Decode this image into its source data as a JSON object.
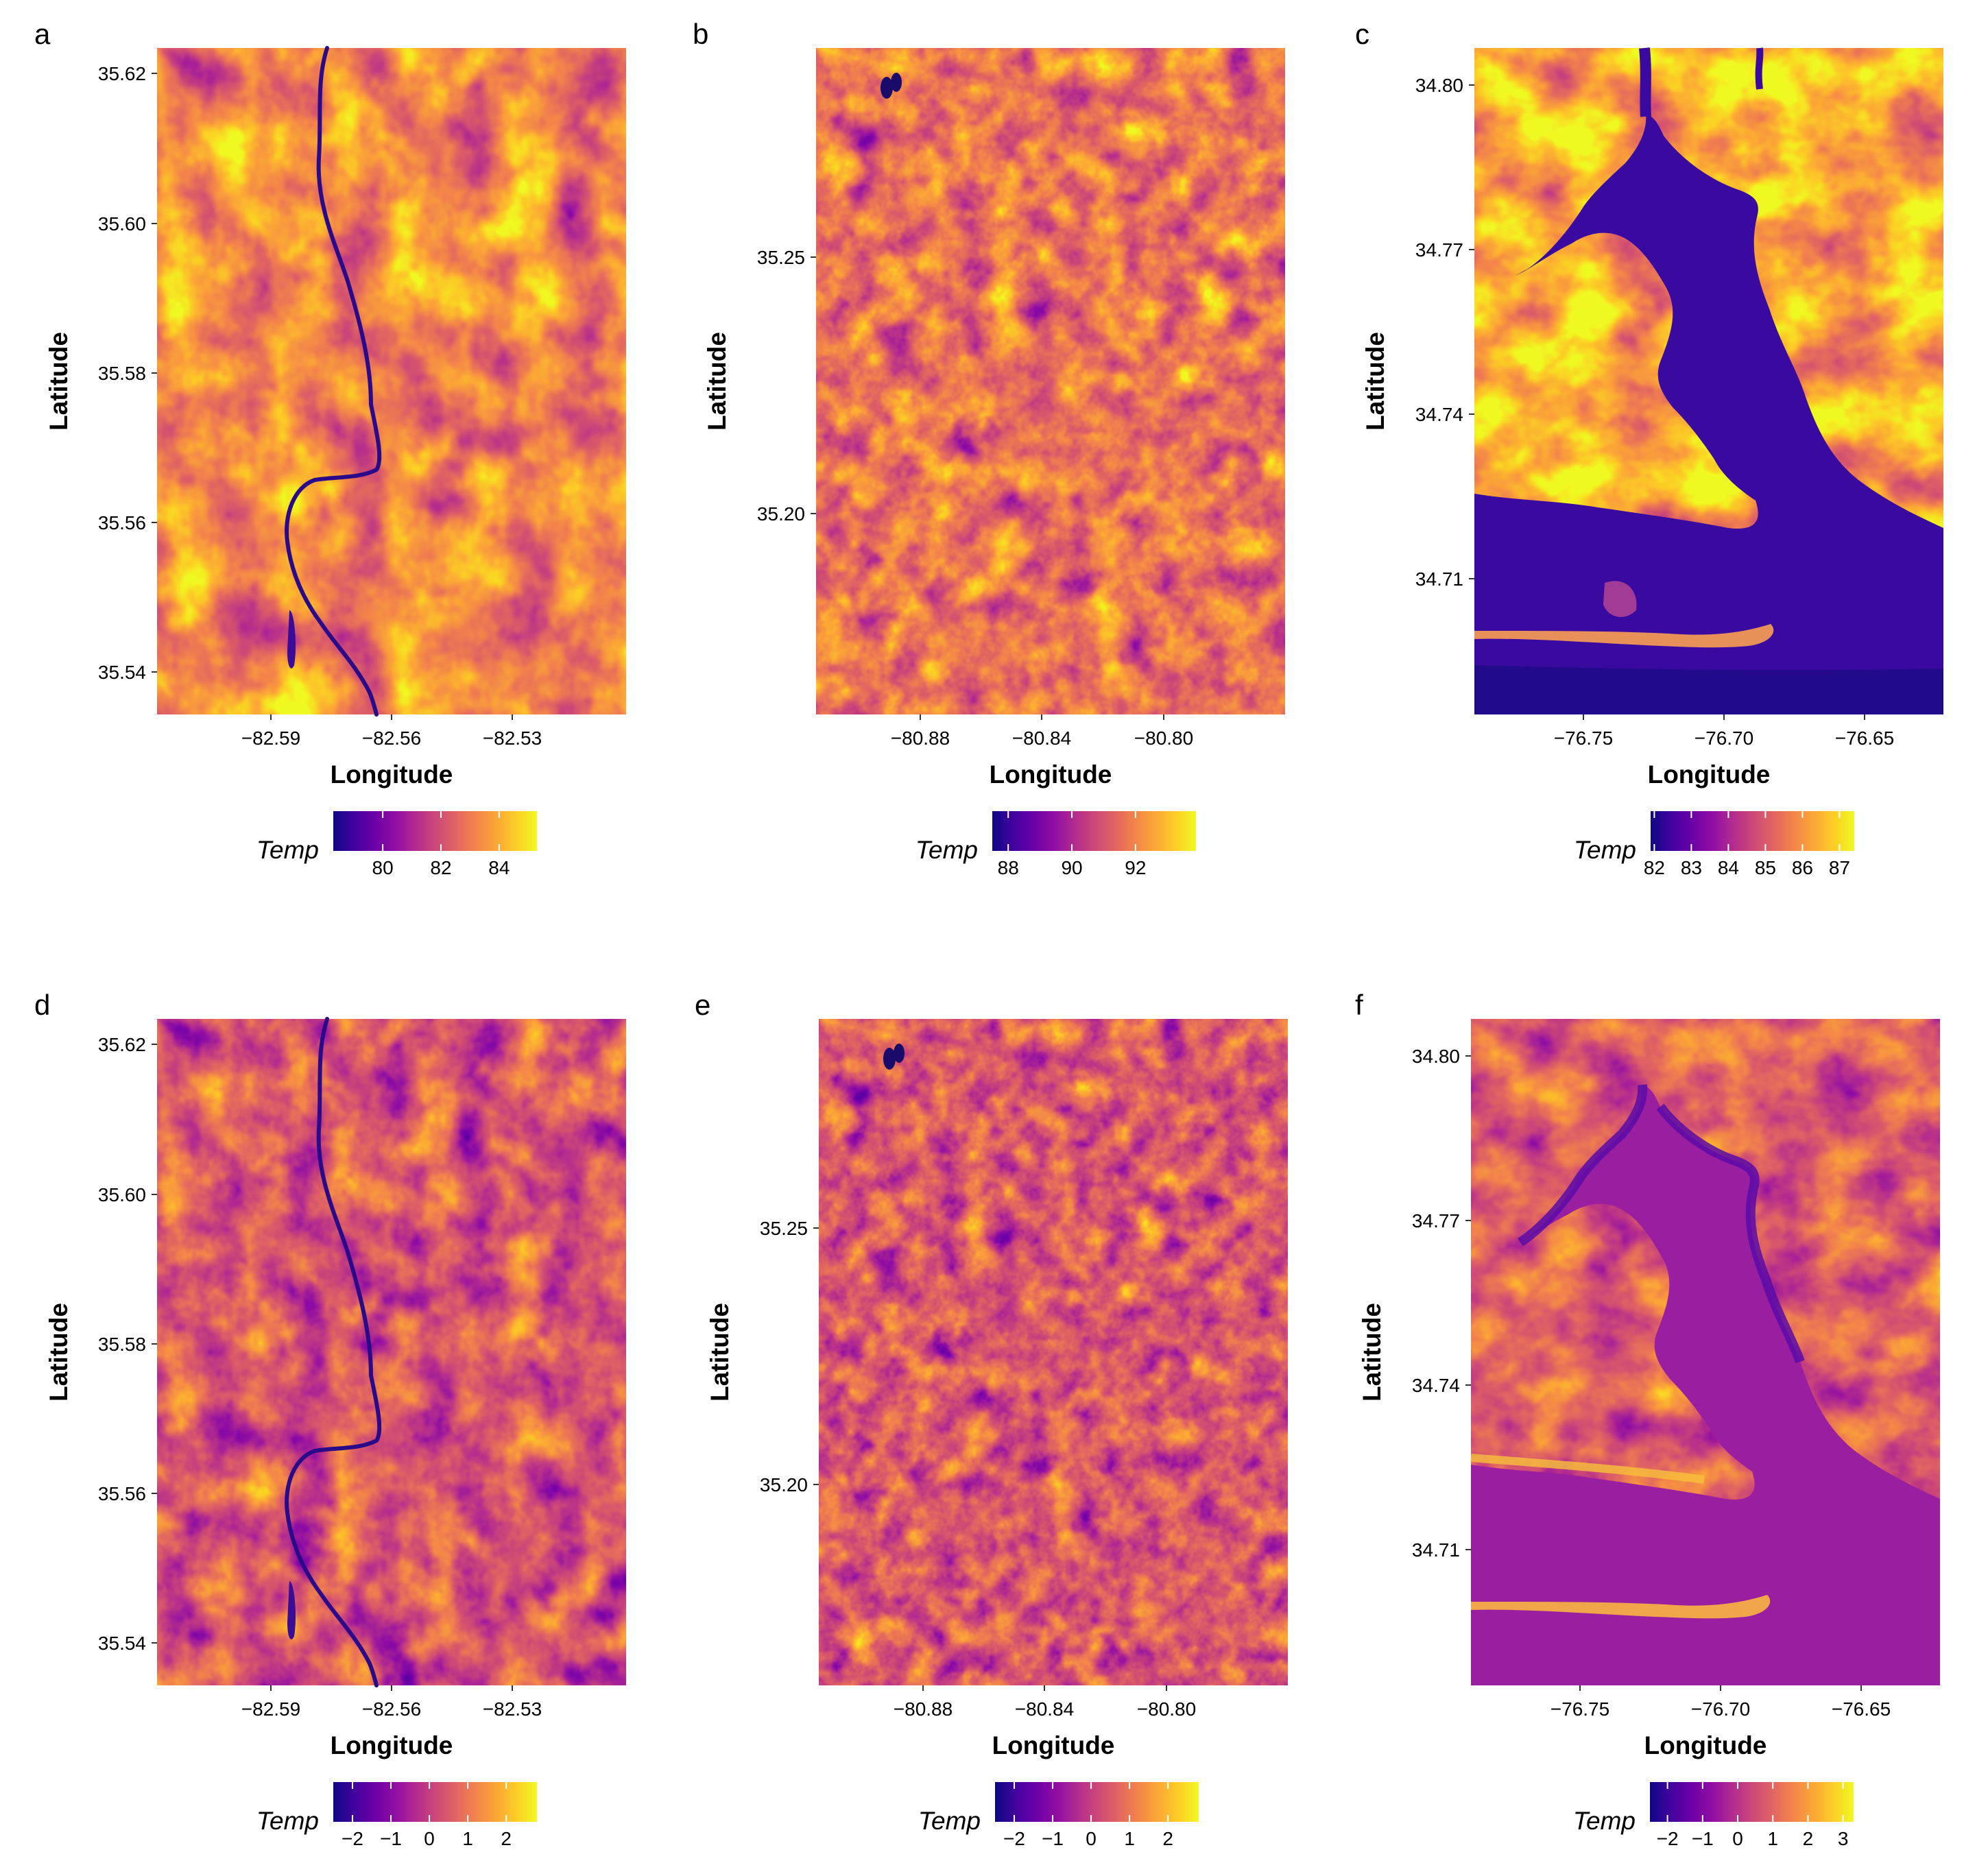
{
  "colors": {
    "palette": "plasma",
    "stops": [
      "#0d0887",
      "#41049d",
      "#6a00a8",
      "#8f0da4",
      "#b12a90",
      "#cc4778",
      "#e16462",
      "#f2844b",
      "#fca636",
      "#fcce25",
      "#f0f921"
    ]
  },
  "chart_data": [
    {
      "type": "heatmap",
      "panel": "a",
      "xlabel": "Longitude",
      "ylabel": "Latitude",
      "x_ticks": [
        "−82.59",
        "−82.56",
        "−82.53"
      ],
      "x_tick_values": [
        -82.59,
        -82.56,
        -82.53
      ],
      "y_ticks": [
        "35.54",
        "35.56",
        "35.58",
        "35.60",
        "35.62"
      ],
      "y_tick_values": [
        35.54,
        35.56,
        35.58,
        35.6,
        35.62
      ],
      "xlim": [
        -82.617,
        -82.5067
      ],
      "ylim": [
        35.534,
        35.623
      ],
      "legend": {
        "title": "Temp",
        "ticks": [
          "80",
          "82",
          "84"
        ],
        "tick_values": [
          80,
          82,
          84
        ],
        "range": [
          78.3,
          85.3
        ]
      },
      "layers": {
        "water": "river",
        "cool_patches": [
          [
            0.75,
            0.05,
            0.12,
            0.4,
            1.0
          ],
          [
            0.58,
            0.1,
            0.08,
            0.35,
            0.9
          ]
        ]
      }
    },
    {
      "type": "heatmap",
      "panel": "b",
      "xlabel": "Longitude",
      "ylabel": "Latitude",
      "x_ticks": [
        "−80.88",
        "−80.84",
        "−80.80"
      ],
      "x_tick_values": [
        -80.88,
        -80.84,
        -80.8
      ],
      "y_ticks": [
        "35.20",
        "35.25"
      ],
      "y_tick_values": [
        35.2,
        35.25
      ],
      "xlim": [
        -80.9065,
        -80.7835
      ],
      "ylim": [
        35.1635,
        35.2935
      ],
      "legend": {
        "title": "Temp",
        "ticks": [
          "88",
          "90",
          "92"
        ],
        "tick_values": [
          88,
          90,
          92
        ],
        "range": [
          87.5,
          93.9
        ]
      },
      "layers": {
        "water": "none",
        "urban_core": [
          0.43,
          0.55
        ]
      }
    },
    {
      "type": "heatmap",
      "panel": "c",
      "xlabel": "Longitude",
      "ylabel": "Latitude",
      "x_ticks": [
        "−76.75",
        "−76.70",
        "−76.65"
      ],
      "x_tick_values": [
        -76.75,
        -76.7,
        -76.65
      ],
      "y_ticks": [
        "34.71",
        "34.74",
        "34.77",
        "34.80"
      ],
      "y_tick_values": [
        34.71,
        34.74,
        34.77,
        34.8
      ],
      "xlim": [
        -76.7878,
        -76.6211
      ],
      "ylim": [
        34.6822,
        34.8062
      ],
      "legend": {
        "title": "Temp",
        "ticks": [
          "82",
          "83",
          "84",
          "85",
          "86",
          "87"
        ],
        "tick_values": [
          82,
          83,
          84,
          85,
          86,
          87
        ],
        "range": [
          81.9,
          87.4
        ]
      },
      "layers": {
        "water": "estuary"
      }
    },
    {
      "type": "heatmap",
      "panel": "d",
      "xlabel": "Longitude",
      "ylabel": "Latitude",
      "x_ticks": [
        "−82.59",
        "−82.56",
        "−82.53"
      ],
      "x_tick_values": [
        -82.59,
        -82.56,
        -82.53
      ],
      "y_ticks": [
        "35.54",
        "35.56",
        "35.58",
        "35.60",
        "35.62"
      ],
      "y_tick_values": [
        35.54,
        35.56,
        35.58,
        35.6,
        35.62
      ],
      "xlim": [
        -82.617,
        -82.5067
      ],
      "ylim": [
        35.534,
        35.623
      ],
      "legend": {
        "title": "Temp",
        "ticks": [
          "−2",
          "−1",
          "0",
          "1",
          "2"
        ],
        "tick_values": [
          -2,
          -1,
          0,
          1,
          2
        ],
        "range": [
          -2.5,
          2.8
        ]
      },
      "layers": {
        "water": "river"
      }
    },
    {
      "type": "heatmap",
      "panel": "e",
      "xlabel": "Longitude",
      "ylabel": "Latitude",
      "x_ticks": [
        "−80.88",
        "−80.84",
        "−80.80"
      ],
      "x_tick_values": [
        -80.88,
        -80.84,
        -80.8
      ],
      "y_ticks": [
        "35.20",
        "35.25"
      ],
      "y_tick_values": [
        35.2,
        35.25
      ],
      "xlim": [
        -80.9065,
        -80.7835
      ],
      "ylim": [
        35.1635,
        35.2935
      ],
      "legend": {
        "title": "Temp",
        "ticks": [
          "−2",
          "−1",
          "0",
          "1",
          "2"
        ],
        "tick_values": [
          -2,
          -1,
          0,
          1,
          2
        ],
        "range": [
          -2.5,
          2.8
        ]
      },
      "layers": {
        "water": "none"
      }
    },
    {
      "type": "heatmap",
      "panel": "f",
      "xlabel": "Longitude",
      "ylabel": "Latitude",
      "x_ticks": [
        "−76.75",
        "−76.70",
        "−76.65"
      ],
      "x_tick_values": [
        -76.75,
        -76.7,
        -76.65
      ],
      "y_ticks": [
        "34.71",
        "34.74",
        "34.77",
        "34.80"
      ],
      "y_tick_values": [
        34.71,
        34.74,
        34.77,
        34.8
      ],
      "xlim": [
        -76.7878,
        -76.6211
      ],
      "ylim": [
        34.6822,
        34.8062
      ],
      "legend": {
        "title": "Temp",
        "ticks": [
          "−2",
          "−1",
          "0",
          "1",
          "2",
          "3"
        ],
        "tick_values": [
          -2,
          -1,
          0,
          1,
          2,
          3
        ],
        "range": [
          -2.5,
          3.3
        ]
      },
      "layers": {
        "water": "estuary"
      }
    }
  ]
}
